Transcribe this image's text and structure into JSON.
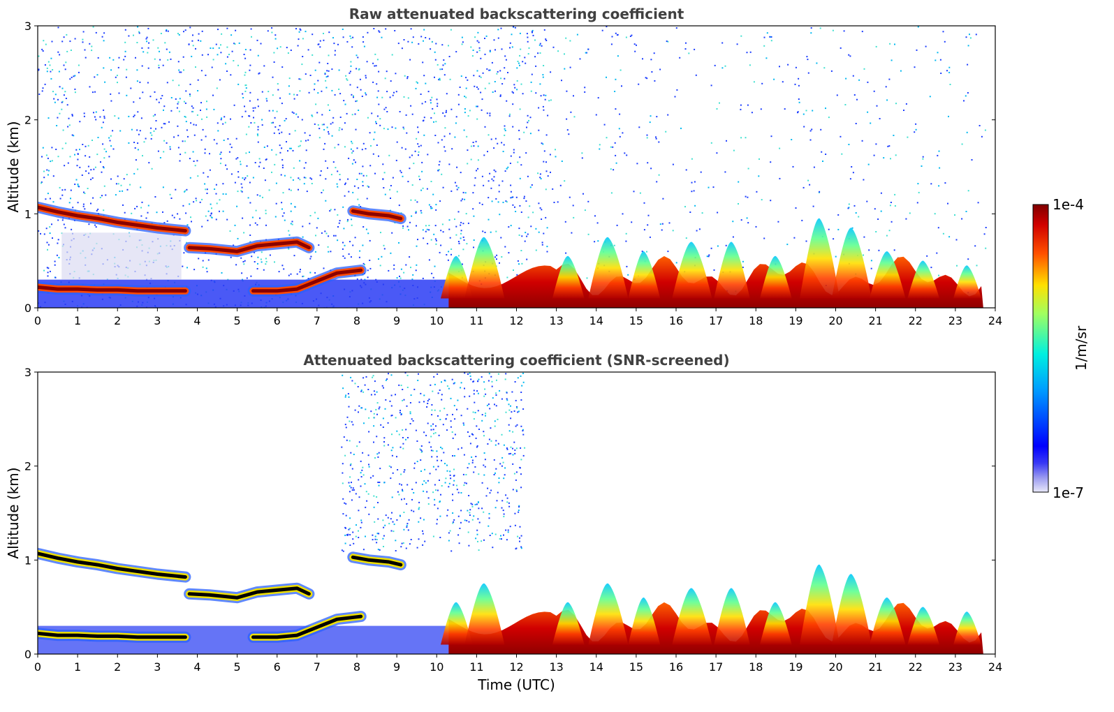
{
  "chart_data": [
    {
      "type": "heatmap",
      "title": "Raw attenuated backscattering coefficient",
      "xlabel": "",
      "ylabel": "Altitude (km)",
      "xlim": [
        0,
        24
      ],
      "ylim": [
        0,
        3
      ],
      "xticks": [
        0,
        1,
        2,
        3,
        4,
        5,
        6,
        7,
        8,
        9,
        10,
        11,
        12,
        13,
        14,
        15,
        16,
        17,
        18,
        19,
        20,
        21,
        22,
        23,
        24
      ],
      "yticks": [
        0,
        1,
        2,
        3
      ],
      "layers": [
        {
          "kind": "cloud",
          "x": [
            0,
            0.5,
            1,
            1.5,
            2,
            2.5,
            3,
            3.7
          ],
          "y": [
            1.07,
            1.02,
            0.98,
            0.95,
            0.91,
            0.88,
            0.85,
            0.82
          ]
        },
        {
          "kind": "cloud",
          "x": [
            3.8,
            4.3,
            5,
            5.5,
            6,
            6.5,
            6.8
          ],
          "y": [
            0.64,
            0.63,
            0.6,
            0.66,
            0.68,
            0.7,
            0.64
          ]
        },
        {
          "kind": "cloud",
          "x": [
            0,
            0.5,
            1,
            1.5,
            2,
            2.5,
            3,
            3.7
          ],
          "y": [
            0.22,
            0.2,
            0.2,
            0.19,
            0.19,
            0.18,
            0.18,
            0.18
          ]
        },
        {
          "kind": "cloud",
          "x": [
            5.4,
            6,
            6.5,
            7.5,
            8.1
          ],
          "y": [
            0.18,
            0.18,
            0.2,
            0.37,
            0.4
          ]
        },
        {
          "kind": "cloud",
          "x": [
            7.9,
            8.3,
            8.8,
            9.1
          ],
          "y": [
            1.03,
            1.0,
            0.98,
            0.95
          ]
        }
      ]
    },
    {
      "type": "heatmap",
      "title": "Attenuated backscattering coefficient (SNR-screened)",
      "xlabel": "Time (UTC)",
      "ylabel": "Altitude (km)",
      "xlim": [
        0,
        24
      ],
      "ylim": [
        0,
        3
      ],
      "xticks": [
        0,
        1,
        2,
        3,
        4,
        5,
        6,
        7,
        8,
        9,
        10,
        11,
        12,
        13,
        14,
        15,
        16,
        17,
        18,
        19,
        20,
        21,
        22,
        23,
        24
      ],
      "yticks": [
        0,
        1,
        2,
        3
      ],
      "layers": [
        {
          "kind": "cloud",
          "x": [
            0,
            0.5,
            1,
            1.5,
            2,
            2.5,
            3,
            3.7
          ],
          "y": [
            1.07,
            1.02,
            0.98,
            0.95,
            0.91,
            0.88,
            0.85,
            0.82
          ]
        },
        {
          "kind": "cloud",
          "x": [
            3.8,
            4.3,
            5,
            5.5,
            6,
            6.5,
            6.8
          ],
          "y": [
            0.64,
            0.63,
            0.6,
            0.66,
            0.68,
            0.7,
            0.64
          ]
        },
        {
          "kind": "cloud",
          "x": [
            0,
            0.5,
            1,
            1.5,
            2,
            2.5,
            3,
            3.7
          ],
          "y": [
            0.22,
            0.2,
            0.2,
            0.19,
            0.19,
            0.18,
            0.18,
            0.18
          ]
        },
        {
          "kind": "cloud",
          "x": [
            5.4,
            6,
            6.5,
            7.5,
            8.1
          ],
          "y": [
            0.18,
            0.18,
            0.2,
            0.37,
            0.4
          ]
        },
        {
          "kind": "cloud",
          "x": [
            7.9,
            8.3,
            8.8,
            9.1
          ],
          "y": [
            1.03,
            1.0,
            0.98,
            0.95
          ]
        }
      ]
    }
  ],
  "colorbar": {
    "label": "1/m/sr",
    "max_label": "1e-4",
    "min_label": "1e-7",
    "range": [
      1e-07,
      0.0001
    ],
    "scale": "log",
    "colormap": "jet"
  }
}
